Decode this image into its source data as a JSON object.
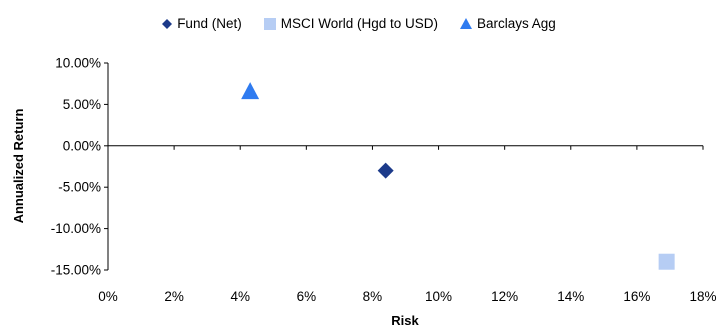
{
  "chart_data": {
    "type": "scatter",
    "xlabel": "Risk",
    "ylabel": "Annualized Return",
    "xlim": [
      0,
      18
    ],
    "ylim": [
      -15,
      10
    ],
    "x_ticks": [
      "0%",
      "2%",
      "4%",
      "6%",
      "8%",
      "10%",
      "12%",
      "14%",
      "16%",
      "18%"
    ],
    "y_ticks": [
      "10.00%",
      "5.00%",
      "0.00%",
      "-5.00%",
      "-10.00%",
      "-15.00%"
    ],
    "x_tick_values": [
      0,
      2,
      4,
      6,
      8,
      10,
      12,
      14,
      16,
      18
    ],
    "y_tick_values": [
      10,
      5,
      0,
      -5,
      -10,
      -15
    ],
    "legend_position": "top",
    "series": [
      {
        "name": "Fund (Net)",
        "marker": "diamond",
        "color": "#1c3a8a",
        "x": 8.4,
        "y": -3.0
      },
      {
        "name": "MSCI World (Hgd to USD)",
        "marker": "square",
        "color": "#b6cdf4",
        "x": 16.9,
        "y": -14.0
      },
      {
        "name": "Barclays Agg",
        "marker": "triangle",
        "color": "#2f7bf0",
        "x": 4.3,
        "y": 6.6
      }
    ]
  }
}
